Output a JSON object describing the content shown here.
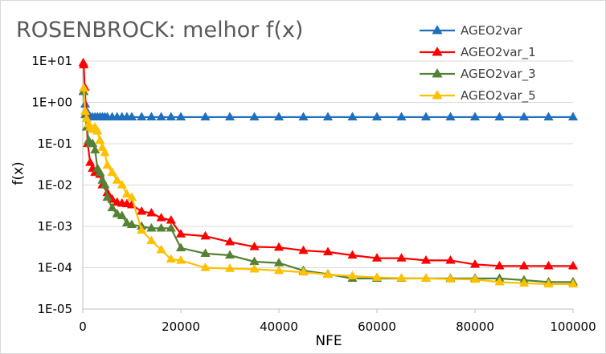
{
  "chart_data": {
    "type": "line",
    "title": "ROSENBROCK: melhor f(x)",
    "xlabel": "NFE",
    "ylabel": "f(x)",
    "xlim": [
      0,
      100000
    ],
    "ylim": [
      1e-05,
      10
    ],
    "yscale": "log",
    "x_ticks": [
      0,
      20000,
      40000,
      60000,
      80000,
      100000
    ],
    "x_tick_labels": [
      "0",
      "20000",
      "40000",
      "60000",
      "80000",
      "100000"
    ],
    "y_ticks": [
      10,
      1,
      0.1,
      0.01,
      0.001,
      0.0001,
      1e-05
    ],
    "y_tick_labels": [
      "1E+01",
      "1E+00",
      "1E-01",
      "1E-02",
      "1E-03",
      "1E-04",
      "1E-05"
    ],
    "grid": "horizontal major",
    "legend": "top-right",
    "marker": "triangle",
    "series": [
      {
        "name": "AGEO2var",
        "color": "#1f6fbf",
        "x": [
          100,
          500,
          1000,
          1500,
          2000,
          2500,
          3000,
          3500,
          4000,
          4500,
          5000,
          6000,
          7000,
          8000,
          9000,
          10000,
          12000,
          14000,
          16000,
          18000,
          20000,
          25000,
          30000,
          35000,
          40000,
          45000,
          50000,
          55000,
          60000,
          65000,
          70000,
          75000,
          80000,
          85000,
          90000,
          95000,
          100000
        ],
        "y": [
          1.8,
          0.9,
          0.55,
          0.45,
          0.44,
          0.44,
          0.44,
          0.44,
          0.44,
          0.44,
          0.44,
          0.44,
          0.44,
          0.44,
          0.44,
          0.44,
          0.44,
          0.44,
          0.44,
          0.44,
          0.44,
          0.44,
          0.44,
          0.44,
          0.44,
          0.44,
          0.44,
          0.44,
          0.44,
          0.44,
          0.44,
          0.44,
          0.44,
          0.44,
          0.44,
          0.44,
          0.44
        ]
      },
      {
        "name": "AGEO2var_1",
        "color": "#ff0000",
        "x": [
          100,
          200,
          400,
          700,
          1000,
          1500,
          2000,
          2500,
          3000,
          3500,
          4000,
          5000,
          6000,
          7000,
          8000,
          9000,
          10000,
          12000,
          14000,
          16000,
          18000,
          20000,
          25000,
          30000,
          35000,
          40000,
          45000,
          50000,
          55000,
          60000,
          65000,
          70000,
          75000,
          80000,
          85000,
          90000,
          95000,
          100000
        ],
        "y": [
          9,
          8,
          2.3,
          0.55,
          0.1,
          0.035,
          0.025,
          0.02,
          0.025,
          0.018,
          0.01,
          0.0065,
          0.0045,
          0.0038,
          0.0036,
          0.0035,
          0.0033,
          0.0023,
          0.0021,
          0.0016,
          0.0014,
          0.00065,
          0.00058,
          0.00042,
          0.00032,
          0.00031,
          0.00026,
          0.00024,
          0.0002,
          0.00017,
          0.00017,
          0.00015,
          0.00015,
          0.00012,
          0.00011,
          0.00011,
          0.00011,
          0.00011
        ]
      },
      {
        "name": "AGEO2var_3",
        "color": "#548235",
        "x": [
          200,
          500,
          800,
          1200,
          1500,
          2000,
          2500,
          3000,
          3500,
          4000,
          4500,
          5000,
          6000,
          7000,
          8000,
          9000,
          10000,
          12000,
          14000,
          16000,
          18000,
          20000,
          25000,
          30000,
          35000,
          40000,
          45000,
          50000,
          55000,
          60000,
          65000,
          70000,
          75000,
          80000,
          85000,
          90000,
          95000,
          100000
        ],
        "y": [
          1.8,
          0.5,
          0.25,
          0.12,
          0.1,
          0.1,
          0.07,
          0.025,
          0.02,
          0.013,
          0.01,
          0.005,
          0.0028,
          0.002,
          0.0018,
          0.0012,
          0.0011,
          0.001,
          0.0009,
          0.0009,
          0.0009,
          0.0003,
          0.00022,
          0.0002,
          0.00014,
          0.00013,
          8.5e-05,
          7e-05,
          5.5e-05,
          5.5e-05,
          5.5e-05,
          5.5e-05,
          5.5e-05,
          5.5e-05,
          5.5e-05,
          5e-05,
          4.5e-05,
          4.5e-05
        ]
      },
      {
        "name": "AGEO2var_5",
        "color": "#ffc000",
        "x": [
          200,
          500,
          800,
          1200,
          1500,
          2000,
          2500,
          3000,
          3500,
          4000,
          4500,
          5000,
          6000,
          7000,
          8000,
          9000,
          10000,
          12000,
          14000,
          16000,
          18000,
          20000,
          25000,
          30000,
          35000,
          40000,
          45000,
          50000,
          55000,
          60000,
          65000,
          70000,
          75000,
          80000,
          85000,
          90000,
          95000,
          100000
        ],
        "y": [
          2.2,
          0.6,
          0.4,
          0.3,
          0.25,
          0.22,
          0.25,
          0.2,
          0.12,
          0.08,
          0.06,
          0.03,
          0.02,
          0.013,
          0.01,
          0.006,
          0.005,
          0.0008,
          0.00045,
          0.00027,
          0.00016,
          0.00015,
          0.0001,
          9.5e-05,
          9.2e-05,
          8.5e-05,
          7.8e-05,
          6.8e-05,
          6.3e-05,
          5.8e-05,
          5.6e-05,
          5.5e-05,
          5.3e-05,
          5.2e-05,
          4.5e-05,
          4.2e-05,
          4e-05,
          4e-05
        ]
      }
    ]
  }
}
